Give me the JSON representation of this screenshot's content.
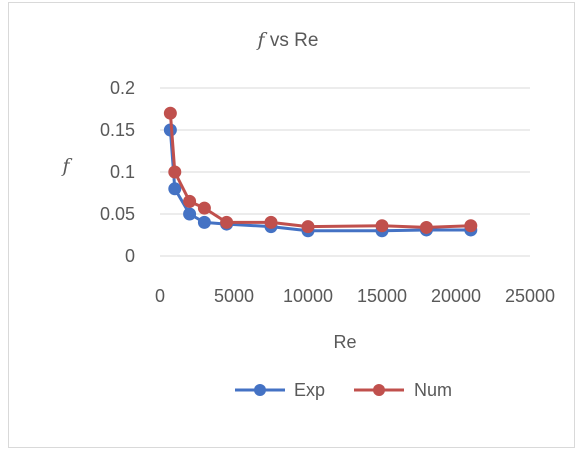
{
  "chart_data": {
    "type": "line",
    "title_symbol": "f",
    "title_rest": " vs Re",
    "xlabel": "Re",
    "ylabel": "f",
    "xlim": [
      0,
      25000
    ],
    "ylim": [
      0,
      0.2
    ],
    "x_ticks": [
      0,
      5000,
      10000,
      15000,
      20000,
      25000
    ],
    "y_ticks": [
      0,
      0.05,
      0.1,
      0.15,
      0.2
    ],
    "x_tick_labels": [
      "0",
      "5000",
      "10000",
      "15000",
      "20000",
      "25000"
    ],
    "y_tick_labels": [
      "0",
      "0.05",
      "0.1",
      "0.15",
      "0.2"
    ],
    "grid": "horizontal",
    "legend_position": "bottom",
    "series": [
      {
        "name": "Exp",
        "color": "#4472c4",
        "x": [
          700,
          1000,
          2000,
          3000,
          4500,
          7500,
          10000,
          15000,
          18000,
          21000
        ],
        "y": [
          0.15,
          0.08,
          0.05,
          0.04,
          0.038,
          0.035,
          0.03,
          0.03,
          0.031,
          0.031
        ]
      },
      {
        "name": "Num",
        "color": "#c0504d",
        "x": [
          700,
          1000,
          2000,
          3000,
          4500,
          7500,
          10000,
          15000,
          18000,
          21000
        ],
        "y": [
          0.17,
          0.1,
          0.065,
          0.057,
          0.04,
          0.04,
          0.035,
          0.036,
          0.034,
          0.036
        ]
      }
    ]
  }
}
